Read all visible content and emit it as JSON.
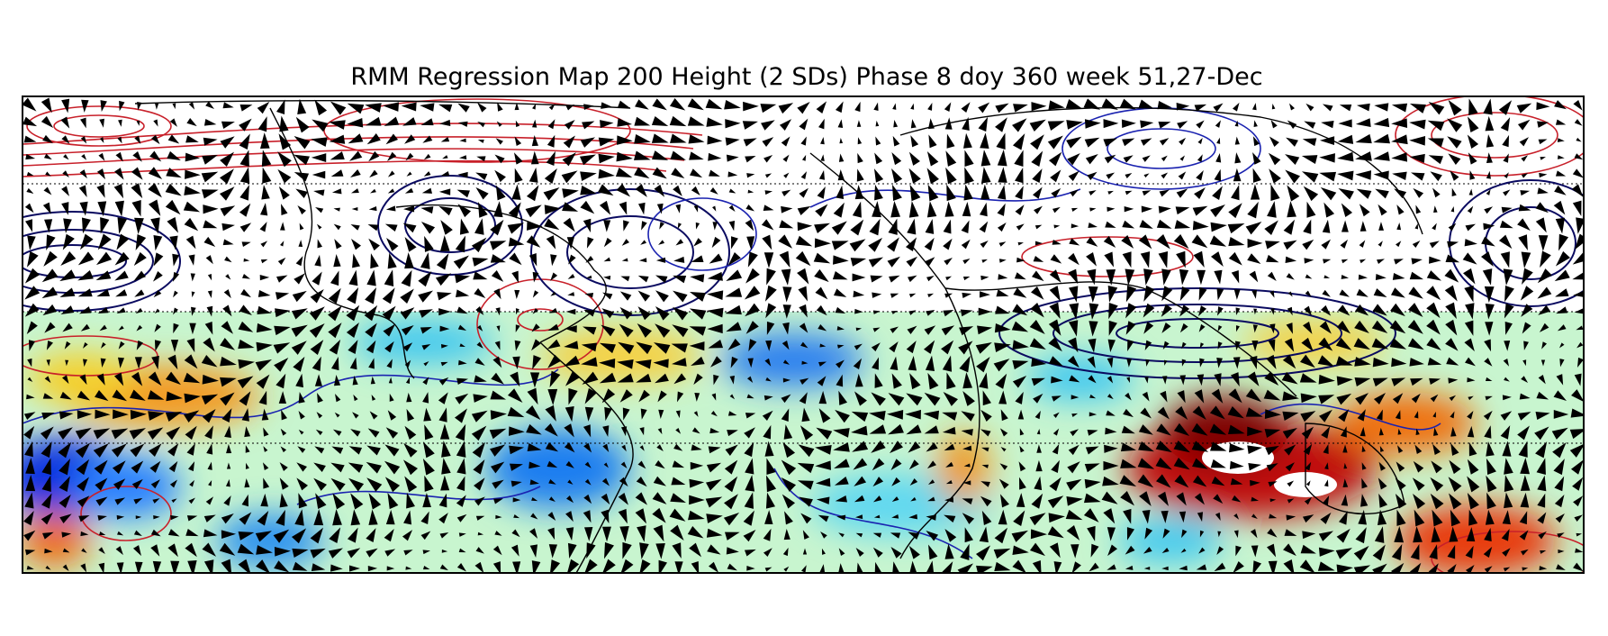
{
  "title": "RMM Regression Map 200 Height (2 SDs) Phase 8 doy 360 week 51,27-Dec"
}
